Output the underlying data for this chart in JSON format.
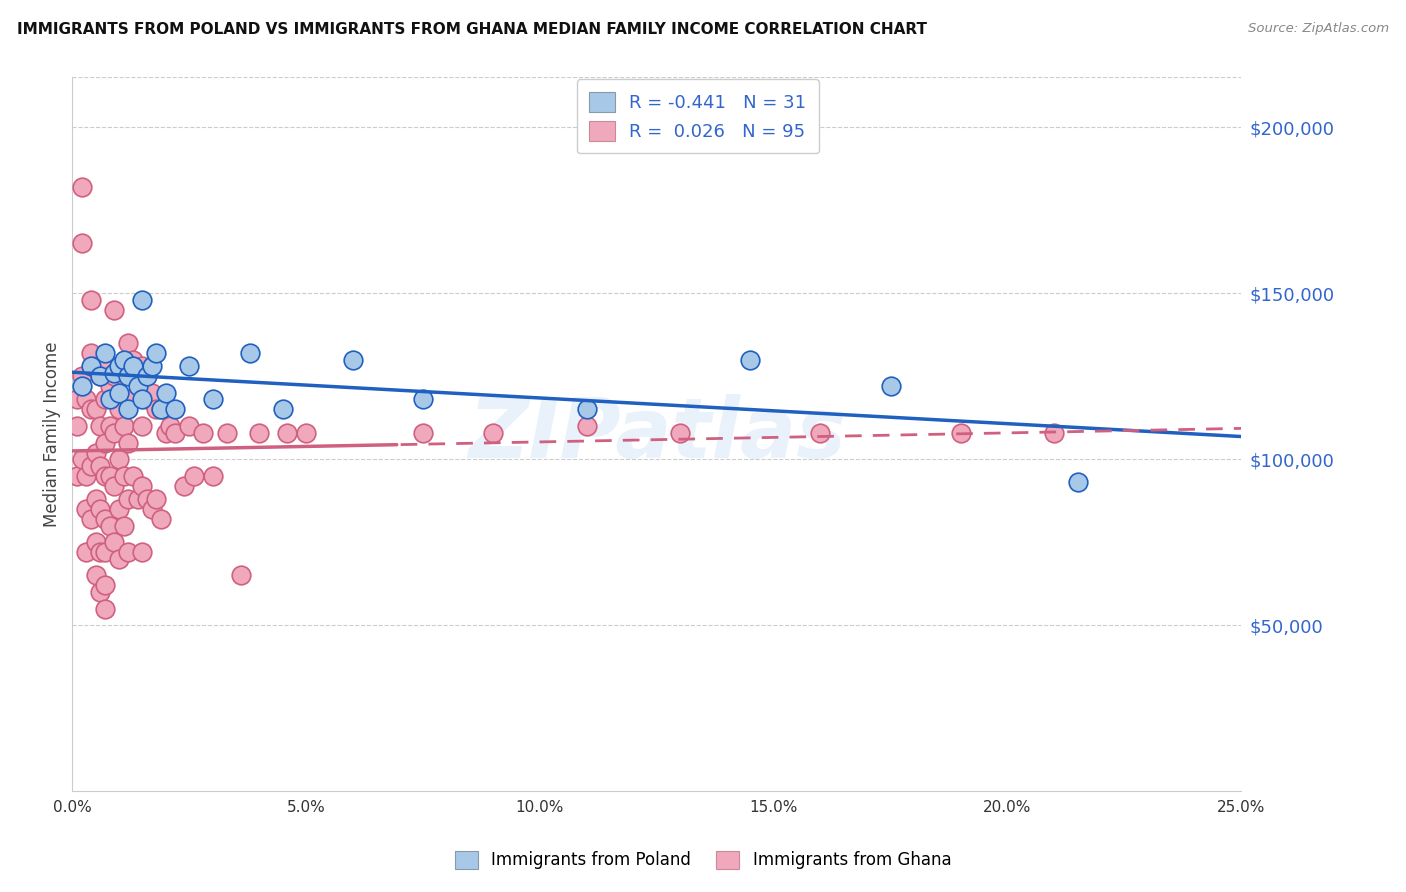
{
  "title": "IMMIGRANTS FROM POLAND VS IMMIGRANTS FROM GHANA MEDIAN FAMILY INCOME CORRELATION CHART",
  "source": "Source: ZipAtlas.com",
  "ylabel": "Median Family Income",
  "ytick_labels": [
    "$50,000",
    "$100,000",
    "$150,000",
    "$200,000"
  ],
  "ytick_values": [
    50000,
    100000,
    150000,
    200000
  ],
  "ylim": [
    0,
    215000
  ],
  "xlim": [
    0.0,
    0.25
  ],
  "xtick_vals": [
    0.0,
    0.05,
    0.1,
    0.15,
    0.2,
    0.25
  ],
  "xtick_labels": [
    "0.0%",
    "5.0%",
    "10.0%",
    "15.0%",
    "20.0%",
    "25.0%"
  ],
  "legend_r_poland": "-0.441",
  "legend_n_poland": "31",
  "legend_r_ghana": "0.026",
  "legend_n_ghana": "95",
  "color_poland": "#a8c8e8",
  "color_poland_fill": "#a8c8e8",
  "color_poland_line": "#2060c0",
  "color_ghana": "#f0a8bc",
  "color_ghana_fill": "#f0a8bc",
  "color_ghana_line": "#d06080",
  "watermark": "ZIPatlas",
  "poland_x": [
    0.002,
    0.004,
    0.006,
    0.007,
    0.008,
    0.009,
    0.01,
    0.01,
    0.011,
    0.012,
    0.012,
    0.013,
    0.014,
    0.015,
    0.015,
    0.016,
    0.017,
    0.018,
    0.019,
    0.02,
    0.022,
    0.025,
    0.03,
    0.038,
    0.045,
    0.06,
    0.075,
    0.11,
    0.145,
    0.175,
    0.215
  ],
  "poland_y": [
    122000,
    128000,
    125000,
    132000,
    118000,
    126000,
    128000,
    120000,
    130000,
    125000,
    115000,
    128000,
    122000,
    148000,
    118000,
    125000,
    128000,
    132000,
    115000,
    120000,
    115000,
    128000,
    118000,
    132000,
    115000,
    130000,
    118000,
    115000,
    130000,
    122000,
    93000
  ],
  "ghana_x": [
    0.001,
    0.001,
    0.001,
    0.002,
    0.002,
    0.002,
    0.002,
    0.003,
    0.003,
    0.003,
    0.003,
    0.004,
    0.004,
    0.004,
    0.004,
    0.004,
    0.005,
    0.005,
    0.005,
    0.005,
    0.005,
    0.005,
    0.006,
    0.006,
    0.006,
    0.006,
    0.006,
    0.006,
    0.007,
    0.007,
    0.007,
    0.007,
    0.007,
    0.007,
    0.007,
    0.007,
    0.008,
    0.008,
    0.008,
    0.008,
    0.009,
    0.009,
    0.009,
    0.009,
    0.009,
    0.01,
    0.01,
    0.01,
    0.01,
    0.01,
    0.011,
    0.011,
    0.011,
    0.011,
    0.012,
    0.012,
    0.012,
    0.012,
    0.012,
    0.013,
    0.013,
    0.014,
    0.014,
    0.015,
    0.015,
    0.015,
    0.015,
    0.016,
    0.016,
    0.017,
    0.017,
    0.018,
    0.018,
    0.019,
    0.019,
    0.02,
    0.021,
    0.022,
    0.024,
    0.025,
    0.026,
    0.028,
    0.03,
    0.033,
    0.036,
    0.04,
    0.046,
    0.05,
    0.075,
    0.09,
    0.11,
    0.13,
    0.16,
    0.19,
    0.21
  ],
  "ghana_y": [
    118000,
    110000,
    95000,
    182000,
    165000,
    125000,
    100000,
    118000,
    95000,
    85000,
    72000,
    148000,
    132000,
    115000,
    98000,
    82000,
    128000,
    115000,
    102000,
    88000,
    75000,
    65000,
    125000,
    110000,
    98000,
    85000,
    72000,
    60000,
    130000,
    118000,
    105000,
    95000,
    82000,
    72000,
    62000,
    55000,
    122000,
    110000,
    95000,
    80000,
    145000,
    125000,
    108000,
    92000,
    75000,
    128000,
    115000,
    100000,
    85000,
    70000,
    125000,
    110000,
    95000,
    80000,
    135000,
    118000,
    105000,
    88000,
    72000,
    130000,
    95000,
    125000,
    88000,
    128000,
    110000,
    92000,
    72000,
    118000,
    88000,
    120000,
    85000,
    115000,
    88000,
    115000,
    82000,
    108000,
    110000,
    108000,
    92000,
    110000,
    95000,
    108000,
    95000,
    108000,
    65000,
    108000,
    108000,
    108000,
    108000,
    108000,
    110000,
    108000,
    108000,
    108000,
    108000
  ]
}
